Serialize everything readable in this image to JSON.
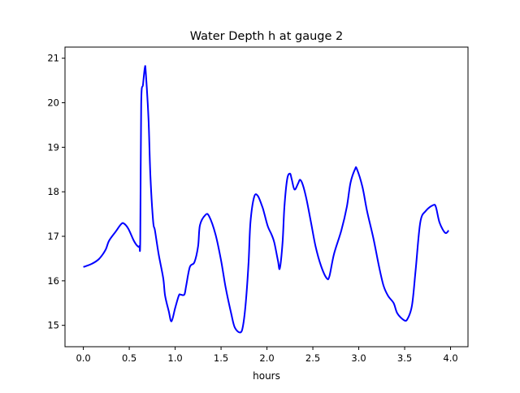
{
  "chart_data": {
    "type": "line",
    "title": "Water Depth h at gauge 2",
    "xlabel": "hours",
    "ylabel": "",
    "xlim": [
      -0.2,
      4.19
    ],
    "ylim": [
      14.52,
      21.25
    ],
    "xticks": [
      "0.0",
      "0.5",
      "1.0",
      "1.5",
      "2.0",
      "2.5",
      "3.0",
      "3.5",
      "4.0"
    ],
    "yticks": [
      "15",
      "16",
      "17",
      "18",
      "19",
      "20",
      "21"
    ],
    "grid": false,
    "series": [
      {
        "name": "h",
        "color": "#0000ff",
        "x": [
          0.0,
          0.09,
          0.17,
          0.24,
          0.28,
          0.35,
          0.41,
          0.44,
          0.49,
          0.55,
          0.59,
          0.61,
          0.62,
          0.63,
          0.65,
          0.67,
          0.68,
          0.71,
          0.73,
          0.76,
          0.78,
          0.82,
          0.87,
          0.89,
          0.93,
          0.96,
          1.0,
          1.04,
          1.06,
          1.1,
          1.12,
          1.16,
          1.21,
          1.25,
          1.27,
          1.33,
          1.37,
          1.44,
          1.5,
          1.55,
          1.61,
          1.65,
          1.71,
          1.74,
          1.77,
          1.8,
          1.82,
          1.86,
          1.9,
          1.95,
          1.97,
          2.01,
          2.05,
          2.08,
          2.12,
          2.14,
          2.17,
          2.19,
          2.22,
          2.25,
          2.27,
          2.3,
          2.34,
          2.36,
          2.39,
          2.43,
          2.48,
          2.53,
          2.59,
          2.65,
          2.68,
          2.73,
          2.81,
          2.87,
          2.91,
          2.96,
          2.98,
          3.04,
          3.09,
          3.16,
          3.22,
          3.27,
          3.32,
          3.38,
          3.42,
          3.49,
          3.53,
          3.58,
          3.62,
          3.67,
          3.73,
          3.81,
          3.84,
          3.88,
          3.94,
          3.98
        ],
        "y": [
          16.31,
          16.38,
          16.49,
          16.69,
          16.9,
          17.1,
          17.27,
          17.29,
          17.17,
          16.9,
          16.78,
          16.78,
          16.95,
          19.97,
          20.41,
          20.79,
          20.68,
          19.62,
          18.37,
          17.34,
          17.13,
          16.6,
          16.06,
          15.67,
          15.32,
          15.09,
          15.39,
          15.67,
          15.69,
          15.69,
          15.89,
          16.31,
          16.42,
          16.78,
          17.25,
          17.48,
          17.45,
          17.04,
          16.46,
          15.85,
          15.27,
          14.95,
          14.84,
          15.0,
          15.53,
          16.42,
          17.31,
          17.88,
          17.91,
          17.66,
          17.52,
          17.22,
          17.04,
          16.86,
          16.45,
          16.28,
          16.86,
          17.66,
          18.28,
          18.41,
          18.28,
          18.05,
          18.19,
          18.27,
          18.16,
          17.84,
          17.31,
          16.77,
          16.33,
          16.06,
          16.1,
          16.6,
          17.13,
          17.66,
          18.2,
          18.51,
          18.51,
          18.11,
          17.57,
          16.95,
          16.33,
          15.89,
          15.66,
          15.5,
          15.27,
          15.12,
          15.14,
          15.45,
          16.25,
          17.31,
          17.57,
          17.7,
          17.66,
          17.31,
          17.08,
          17.13
        ]
      }
    ]
  }
}
